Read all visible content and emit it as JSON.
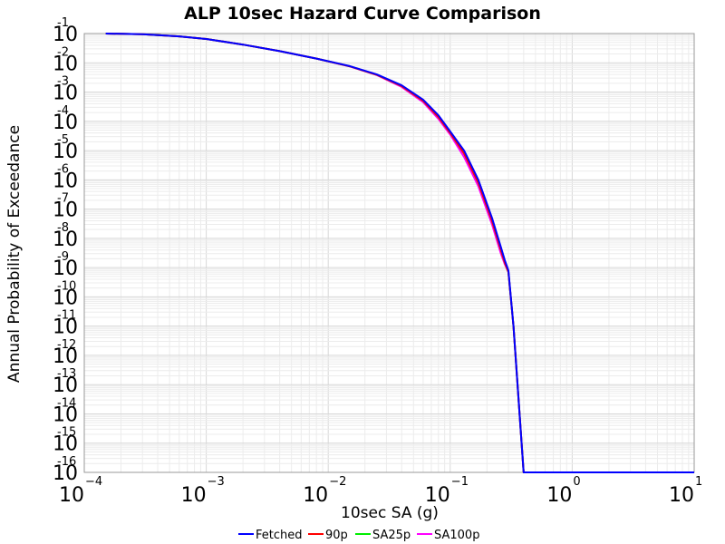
{
  "chart_data": {
    "type": "line",
    "title": "ALP 10sec Hazard Curve Comparison",
    "xlabel": "10sec SA (g)",
    "ylabel": "Annual Probability of Exceedance",
    "xscale": "log",
    "yscale": "log",
    "xlim": [
      0.0001,
      10
    ],
    "ylim": [
      1e-16,
      0.1
    ],
    "grid": true,
    "legend_position": "bottom",
    "x_ticks": [
      {
        "base": "10",
        "exp": "−4",
        "value": 0.0001
      },
      {
        "base": "10",
        "exp": "−3",
        "value": 0.001
      },
      {
        "base": "10",
        "exp": "−2",
        "value": 0.01
      },
      {
        "base": "10",
        "exp": "−1",
        "value": 0.1
      },
      {
        "base": "10",
        "exp": "0",
        "value": 1
      },
      {
        "base": "10",
        "exp": "1",
        "value": 10
      }
    ],
    "y_ticks": [
      {
        "base": "10",
        "exp": "-1",
        "value": 0.1
      },
      {
        "base": "10",
        "exp": "-2",
        "value": 0.01
      },
      {
        "base": "10",
        "exp": "-3",
        "value": 0.001
      },
      {
        "base": "10",
        "exp": "-4",
        "value": 0.0001
      },
      {
        "base": "10",
        "exp": "-5",
        "value": 1e-05
      },
      {
        "base": "10",
        "exp": "-6",
        "value": 1e-06
      },
      {
        "base": "10",
        "exp": "-7",
        "value": 1e-07
      },
      {
        "base": "10",
        "exp": "-8",
        "value": 1e-08
      },
      {
        "base": "10",
        "exp": "-9",
        "value": 1e-09
      },
      {
        "base": "10",
        "exp": "-10",
        "value": 1e-10
      },
      {
        "base": "10",
        "exp": "-11",
        "value": 1e-11
      },
      {
        "base": "10",
        "exp": "-12",
        "value": 1e-12
      },
      {
        "base": "10",
        "exp": "-13",
        "value": 1e-13
      },
      {
        "base": "10",
        "exp": "-14",
        "value": 1e-14
      },
      {
        "base": "10",
        "exp": "-15",
        "value": 1e-15
      },
      {
        "base": "10",
        "exp": "-16",
        "value": 1e-16
      }
    ],
    "series": [
      {
        "name": "SA100p",
        "color": "#ff00ff",
        "x": [
          0.00015,
          0.0003,
          0.0006,
          0.001,
          0.002,
          0.004,
          0.008,
          0.015,
          0.025,
          0.04,
          0.06,
          0.08,
          0.1,
          0.13,
          0.17,
          0.22,
          0.26,
          0.28,
          0.3,
          0.33,
          0.4,
          1,
          10
        ],
        "y": [
          0.1,
          0.095,
          0.08,
          0.065,
          0.042,
          0.025,
          0.014,
          0.0075,
          0.0038,
          0.0015,
          0.00045,
          0.00012,
          3.5e-05,
          6e-06,
          6e-07,
          3e-08,
          3e-09,
          1.3e-09,
          7e-10,
          1e-11,
          1e-16,
          1e-16,
          1e-16
        ]
      },
      {
        "name": "SA25p",
        "color": "#00ee00",
        "x": [
          0.00015,
          0.0003,
          0.0006,
          0.001,
          0.002,
          0.004,
          0.008,
          0.015,
          0.025,
          0.04,
          0.06,
          0.08,
          0.1,
          0.13,
          0.17,
          0.22,
          0.26,
          0.28,
          0.3,
          0.33,
          0.4,
          1,
          10
        ],
        "y": [
          0.1,
          0.095,
          0.08,
          0.065,
          0.042,
          0.025,
          0.014,
          0.0076,
          0.0039,
          0.0016,
          0.0005,
          0.00014,
          4e-05,
          8e-06,
          8e-07,
          4e-08,
          4e-09,
          1.5e-09,
          7e-10,
          1e-11,
          1e-16,
          1e-16,
          1e-16
        ]
      },
      {
        "name": "90p",
        "color": "#ff0000",
        "x": [
          0.00015,
          0.0003,
          0.0006,
          0.001,
          0.002,
          0.004,
          0.008,
          0.015,
          0.025,
          0.04,
          0.06,
          0.08,
          0.1,
          0.13,
          0.17,
          0.22,
          0.26,
          0.28,
          0.3,
          0.33,
          0.4,
          1,
          10
        ],
        "y": [
          0.1,
          0.095,
          0.08,
          0.065,
          0.042,
          0.025,
          0.014,
          0.0076,
          0.0039,
          0.0016,
          0.0005,
          0.00014,
          4e-05,
          8e-06,
          8e-07,
          4e-08,
          4e-09,
          1.5e-09,
          7e-10,
          1e-11,
          1e-16,
          1e-16,
          1e-16
        ]
      },
      {
        "name": "Fetched",
        "color": "#0000ff",
        "x": [
          0.00015,
          0.0003,
          0.0006,
          0.001,
          0.002,
          0.004,
          0.008,
          0.015,
          0.025,
          0.04,
          0.06,
          0.08,
          0.1,
          0.13,
          0.17,
          0.22,
          0.26,
          0.28,
          0.3,
          0.33,
          0.4,
          1,
          10
        ],
        "y": [
          0.1,
          0.095,
          0.08,
          0.065,
          0.042,
          0.025,
          0.014,
          0.0077,
          0.004,
          0.0017,
          0.00055,
          0.00016,
          4.5e-05,
          1e-05,
          1e-06,
          5e-08,
          5e-09,
          1.8e-09,
          8e-10,
          1e-11,
          1e-16,
          1e-16,
          1e-16
        ]
      }
    ],
    "legend": [
      {
        "name": "Fetched",
        "color": "#0000ff"
      },
      {
        "name": "90p",
        "color": "#ff0000"
      },
      {
        "name": "SA25p",
        "color": "#00ee00"
      },
      {
        "name": "SA100p",
        "color": "#ff00ff"
      }
    ]
  }
}
